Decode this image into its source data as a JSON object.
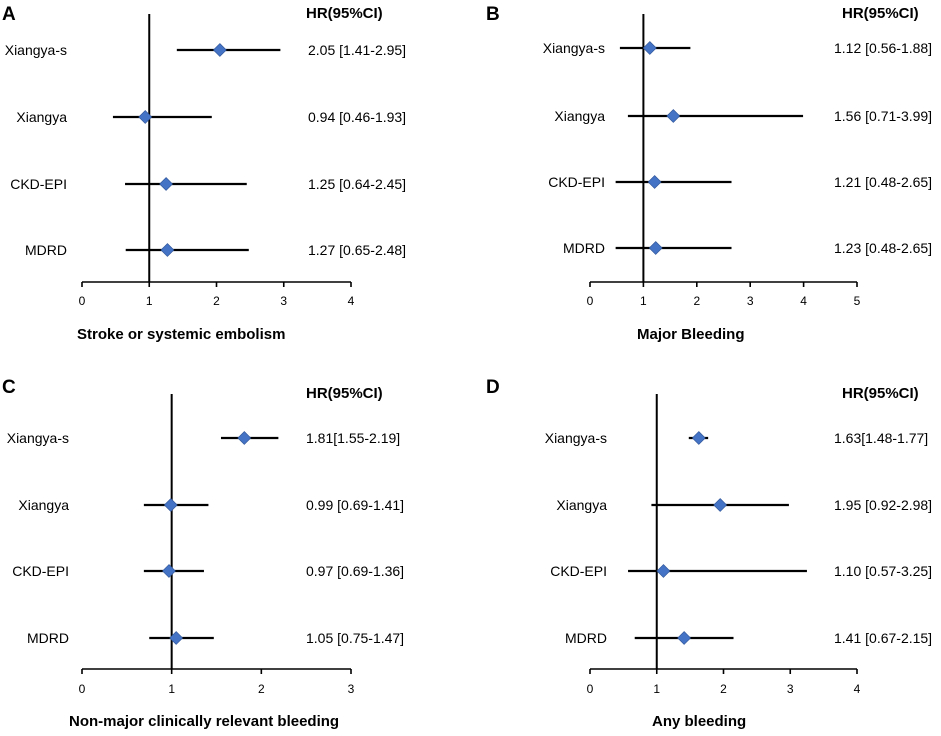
{
  "chart_data": [
    {
      "type": "forest",
      "panel": "A",
      "header": "HR(95%CI)",
      "xlabel": "Stroke or systemic embolism",
      "xlim": [
        0,
        4
      ],
      "xticks": [
        "0",
        "1",
        "2",
        "3",
        "4"
      ],
      "reference": 1,
      "rows": [
        {
          "label": "Xiangya-s",
          "hr": 2.05,
          "lo": 1.41,
          "hi": 2.95,
          "text": "2.05 [1.41-2.95]"
        },
        {
          "label": "Xiangya",
          "hr": 0.94,
          "lo": 0.46,
          "hi": 1.93,
          "text": "0.94 [0.46-1.93]"
        },
        {
          "label": "CKD-EPI",
          "hr": 1.25,
          "lo": 0.64,
          "hi": 2.45,
          "text": "1.25 [0.64-2.45]"
        },
        {
          "label": "MDRD",
          "hr": 1.27,
          "lo": 0.65,
          "hi": 2.48,
          "text": "1.27 [0.65-2.48]"
        }
      ]
    },
    {
      "type": "forest",
      "panel": "B",
      "header": "HR(95%CI)",
      "xlabel": "Major Bleeding",
      "xlim": [
        0,
        5
      ],
      "xticks": [
        "0",
        "1",
        "2",
        "3",
        "4",
        "5"
      ],
      "reference": 1,
      "rows": [
        {
          "label": "Xiangya-s",
          "hr": 1.12,
          "lo": 0.56,
          "hi": 1.88,
          "text": "1.12 [0.56-1.88]"
        },
        {
          "label": "Xiangya",
          "hr": 1.56,
          "lo": 0.71,
          "hi": 3.99,
          "text": "1.56 [0.71-3.99]"
        },
        {
          "label": "CKD-EPI",
          "hr": 1.21,
          "lo": 0.48,
          "hi": 2.65,
          "text": "1.21 [0.48-2.65]"
        },
        {
          "label": "MDRD",
          "hr": 1.23,
          "lo": 0.48,
          "hi": 2.65,
          "text": "1.23 [0.48-2.65]"
        }
      ]
    },
    {
      "type": "forest",
      "panel": "C",
      "header": "HR(95%CI)",
      "xlabel": "Non-major clinically relevant bleeding",
      "xlim": [
        0,
        3
      ],
      "xticks": [
        "0",
        "1",
        "2",
        "3"
      ],
      "reference": 1,
      "rows": [
        {
          "label": "Xiangya-s",
          "hr": 1.81,
          "lo": 1.55,
          "hi": 2.19,
          "text": "1.81[1.55-2.19]"
        },
        {
          "label": "Xiangya",
          "hr": 0.99,
          "lo": 0.69,
          "hi": 1.41,
          "text": "0.99 [0.69-1.41]"
        },
        {
          "label": "CKD-EPI",
          "hr": 0.97,
          "lo": 0.69,
          "hi": 1.36,
          "text": "0.97 [0.69-1.36]"
        },
        {
          "label": "MDRD",
          "hr": 1.05,
          "lo": 0.75,
          "hi": 1.47,
          "text": "1.05 [0.75-1.47]"
        }
      ]
    },
    {
      "type": "forest",
      "panel": "D",
      "header": "HR(95%CI)",
      "xlabel": "Any bleeding",
      "xlim": [
        0,
        4
      ],
      "xticks": [
        "0",
        "1",
        "2",
        "3",
        "4"
      ],
      "reference": 1,
      "rows": [
        {
          "label": "Xiangya-s",
          "hr": 1.63,
          "lo": 1.48,
          "hi": 1.77,
          "text": "1.63[1.48-1.77]"
        },
        {
          "label": "Xiangya",
          "hr": 1.95,
          "lo": 0.92,
          "hi": 2.98,
          "text": "1.95 [0.92-2.98]"
        },
        {
          "label": "CKD-EPI",
          "hr": 1.1,
          "lo": 0.57,
          "hi": 3.25,
          "text": "1.10 [0.57-3.25]"
        },
        {
          "label": "MDRD",
          "hr": 1.41,
          "lo": 0.67,
          "hi": 2.15,
          "text": "1.41 [0.67-2.15]"
        }
      ]
    }
  ],
  "colors": {
    "point": "#4472c4",
    "line": "#000000"
  }
}
